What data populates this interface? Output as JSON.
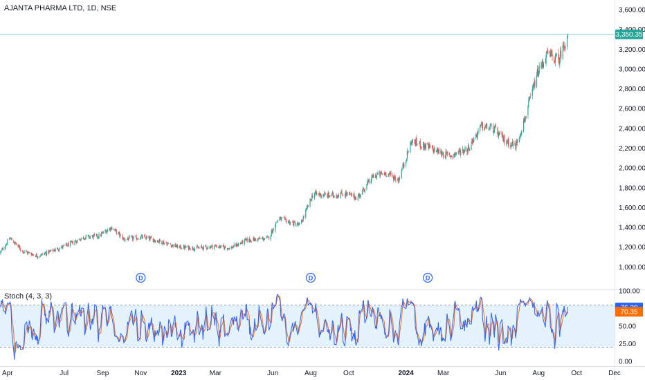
{
  "chart_title": "AJANTA PHARMA LTD, 1D, NSE",
  "colors": {
    "up": "#26a69a",
    "down": "#ef5350",
    "k_line": "#2962ff",
    "d_line": "#ff6d00",
    "band": "#e3f2fd",
    "last_price": "#26a69a"
  },
  "chart_data": [
    {
      "type": "candlestick",
      "title": "AJANTA PHARMA LTD, 1D, NSE",
      "ylim": [
        900,
        3600
      ],
      "y_ticks": [
        "3,600.00",
        "3,400.00",
        "3,200.00",
        "3,000.00",
        "2,800.00",
        "2,600.00",
        "2,400.00",
        "2,200.00",
        "2,000.00",
        "1,800.00",
        "1,600.00",
        "1,400.00",
        "1,200.00",
        "1,000.00"
      ],
      "y_tick_values": [
        3600,
        3400,
        3200,
        3000,
        2800,
        2600,
        2400,
        2200,
        2000,
        1800,
        1600,
        1400,
        1200,
        1000
      ],
      "last_price": 3350.35,
      "last_price_label": "3,350.35",
      "dividend_marker": "D",
      "dividend_dates": [
        "2022-11-01",
        "2023-08-01",
        "2024-02-05"
      ],
      "price_path": [
        {
          "date": "2022-03-20",
          "close": 1140
        },
        {
          "date": "2022-04-05",
          "close": 1290
        },
        {
          "date": "2022-04-25",
          "close": 1160
        },
        {
          "date": "2022-05-20",
          "close": 1110
        },
        {
          "date": "2022-06-15",
          "close": 1170
        },
        {
          "date": "2022-07-10",
          "close": 1230
        },
        {
          "date": "2022-08-01",
          "close": 1300
        },
        {
          "date": "2022-08-25",
          "close": 1310
        },
        {
          "date": "2022-09-15",
          "close": 1400
        },
        {
          "date": "2022-10-05",
          "close": 1280
        },
        {
          "date": "2022-11-05",
          "close": 1300
        },
        {
          "date": "2022-12-01",
          "close": 1260
        },
        {
          "date": "2023-01-01",
          "close": 1200
        },
        {
          "date": "2023-02-01",
          "close": 1190
        },
        {
          "date": "2023-03-01",
          "close": 1210
        },
        {
          "date": "2023-03-25",
          "close": 1190
        },
        {
          "date": "2023-04-20",
          "close": 1270
        },
        {
          "date": "2023-05-25",
          "close": 1290
        },
        {
          "date": "2023-06-10",
          "close": 1490
        },
        {
          "date": "2023-07-15",
          "close": 1420
        },
        {
          "date": "2023-08-05",
          "close": 1740
        },
        {
          "date": "2023-09-01",
          "close": 1720
        },
        {
          "date": "2023-09-25",
          "close": 1740
        },
        {
          "date": "2023-10-15",
          "close": 1700
        },
        {
          "date": "2023-11-10",
          "close": 1920
        },
        {
          "date": "2023-12-01",
          "close": 1950
        },
        {
          "date": "2023-12-20",
          "close": 1880
        },
        {
          "date": "2024-01-10",
          "close": 2270
        },
        {
          "date": "2024-02-05",
          "close": 2210
        },
        {
          "date": "2024-03-10",
          "close": 2120
        },
        {
          "date": "2024-04-10",
          "close": 2200
        },
        {
          "date": "2024-05-01",
          "close": 2420
        },
        {
          "date": "2024-05-20",
          "close": 2400
        },
        {
          "date": "2024-06-05",
          "close": 2290
        },
        {
          "date": "2024-06-25",
          "close": 2220
        },
        {
          "date": "2024-07-10",
          "close": 2500
        },
        {
          "date": "2024-07-30",
          "close": 2950
        },
        {
          "date": "2024-08-15",
          "close": 3150
        },
        {
          "date": "2024-09-02",
          "close": 3090
        },
        {
          "date": "2024-09-17",
          "close": 3350
        }
      ]
    },
    {
      "type": "line",
      "title": "Stoch (4, 3, 3)",
      "ylim": [
        0,
        100
      ],
      "y_ticks": [
        "100.00",
        "50.00",
        "25.00",
        "0.00"
      ],
      "y_tick_values": [
        100,
        50,
        25,
        0
      ],
      "bands": [
        20,
        80
      ],
      "series": [
        {
          "name": "K",
          "last": 76.29,
          "last_label": "76.29"
        },
        {
          "name": "D",
          "last": 70.35,
          "last_label": "70.35"
        }
      ]
    }
  ],
  "x_axis": {
    "start": "2022-03-20",
    "end": "2024-12-01",
    "ticks": [
      {
        "label": "Apr",
        "date": "2022-04-01",
        "bold": false
      },
      {
        "label": "Jul",
        "date": "2022-07-01",
        "bold": false
      },
      {
        "label": "Sep",
        "date": "2022-09-01",
        "bold": false
      },
      {
        "label": "Nov",
        "date": "2022-11-01",
        "bold": false
      },
      {
        "label": "2023",
        "date": "2023-01-01",
        "bold": true
      },
      {
        "label": "Mar",
        "date": "2023-03-01",
        "bold": false
      },
      {
        "label": "Jun",
        "date": "2023-06-01",
        "bold": false
      },
      {
        "label": "Aug",
        "date": "2023-08-01",
        "bold": false
      },
      {
        "label": "Oct",
        "date": "2023-10-01",
        "bold": false
      },
      {
        "label": "2024",
        "date": "2024-01-01",
        "bold": true
      },
      {
        "label": "Mar",
        "date": "2024-03-01",
        "bold": false
      },
      {
        "label": "Jun",
        "date": "2024-06-01",
        "bold": false
      },
      {
        "label": "Aug",
        "date": "2024-08-01",
        "bold": false
      },
      {
        "label": "Oct",
        "date": "2024-10-01",
        "bold": false
      },
      {
        "label": "Dec",
        "date": "2024-12-01",
        "bold": false
      }
    ]
  }
}
